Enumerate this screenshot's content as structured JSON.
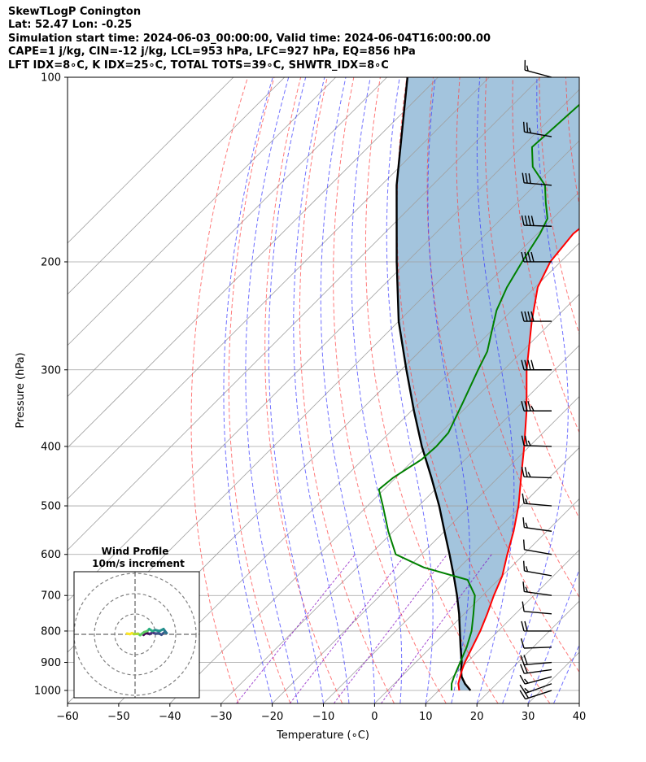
{
  "header": {
    "line1": "SkewTLogP Conington",
    "line2": "Lat: 52.47   Lon: -0.25",
    "line3": "Simulation start time: 2024-06-03_00:00:00, Valid time: 2024-06-04T16:00:00.00",
    "line4": "CAPE=1 j/kg, CIN=-12 j/kg, LCL=953 hPa, LFC=927 hPa, EQ=856 hPa",
    "line5": "LFT IDX=8∘C, K IDX=25∘C, TOTAL TOTS=39∘C, SHWTR_IDX=8∘C"
  },
  "chart_data": {
    "type": "line",
    "subtype": "skew-T log-P diagram",
    "xlabel": "Temperature (∘C)",
    "ylabel": "Pressure (hPa)",
    "xlim": [
      -60,
      40
    ],
    "ylim": [
      1050,
      100
    ],
    "y_scale": "log",
    "x_ticks": [
      -60,
      -50,
      -40,
      -30,
      -20,
      -10,
      0,
      10,
      20,
      30,
      40
    ],
    "y_ticks": [
      1000,
      900,
      800,
      700,
      600,
      500,
      400,
      300,
      200,
      100
    ],
    "grid": true,
    "colors": {
      "temperature": "#ff0000",
      "dewpoint": "#008000",
      "parcel": "#000000",
      "shading": "#a3c4dd",
      "dry_adiabats": "#ff4040",
      "moist_adiabats": "#3333ff",
      "mixing_ratio": "#7f00bf",
      "isotherms": "#a0a0a0"
    },
    "series": [
      {
        "role": "temperature",
        "points": [
          [
            1000,
            14.0
          ],
          [
            975,
            12.5
          ],
          [
            950,
            11.5
          ],
          [
            925,
            10.5
          ],
          [
            900,
            9.6
          ],
          [
            850,
            8.1
          ],
          [
            800,
            6.5
          ],
          [
            750,
            4.5
          ],
          [
            700,
            2.2
          ],
          [
            650,
            0.0
          ],
          [
            600,
            -3.2
          ],
          [
            550,
            -6.5
          ],
          [
            500,
            -10.5
          ],
          [
            450,
            -15.5
          ],
          [
            400,
            -21.0
          ],
          [
            350,
            -27.5
          ],
          [
            300,
            -35.5
          ],
          [
            250,
            -44.0
          ],
          [
            220,
            -49.5
          ],
          [
            200,
            -52.0
          ],
          [
            180,
            -53.0
          ],
          [
            165,
            -52.0
          ],
          [
            150,
            -49.5
          ],
          [
            135,
            -49.0
          ],
          [
            120,
            -49.5
          ],
          [
            110,
            -51.0
          ],
          [
            100,
            -53.0
          ]
        ]
      },
      {
        "role": "dewpoint",
        "points": [
          [
            1000,
            12.5
          ],
          [
            975,
            11.2
          ],
          [
            950,
            10.3
          ],
          [
            925,
            9.5
          ],
          [
            900,
            8.7
          ],
          [
            850,
            7.0
          ],
          [
            800,
            4.8
          ],
          [
            750,
            1.8
          ],
          [
            700,
            -1.5
          ],
          [
            660,
            -6.0
          ],
          [
            630,
            -17.0
          ],
          [
            600,
            -25.0
          ],
          [
            550,
            -31.0
          ],
          [
            500,
            -37.0
          ],
          [
            470,
            -41.0
          ],
          [
            450,
            -40.5
          ],
          [
            420,
            -38.5
          ],
          [
            400,
            -38.2
          ],
          [
            380,
            -38.5
          ],
          [
            340,
            -41.5
          ],
          [
            300,
            -45.0
          ],
          [
            280,
            -46.8
          ],
          [
            260,
            -49.8
          ],
          [
            240,
            -53.0
          ],
          [
            220,
            -55.5
          ],
          [
            200,
            -57.5
          ],
          [
            180,
            -59.5
          ],
          [
            170,
            -61.0
          ],
          [
            160,
            -64.5
          ],
          [
            150,
            -68.0
          ],
          [
            140,
            -74.0
          ],
          [
            130,
            -78.0
          ],
          [
            120,
            -77.5
          ],
          [
            110,
            -77.0
          ],
          [
            100,
            -77.0
          ]
        ]
      },
      {
        "role": "parcel",
        "points": [
          [
            1000,
            16.2
          ],
          [
            975,
            13.8
          ],
          [
            950,
            11.8
          ],
          [
            925,
            10.3
          ],
          [
            900,
            9.0
          ],
          [
            850,
            5.8
          ],
          [
            800,
            2.5
          ],
          [
            750,
            -1.0
          ],
          [
            700,
            -5.0
          ],
          [
            650,
            -9.5
          ],
          [
            600,
            -14.5
          ],
          [
            550,
            -20.0
          ],
          [
            500,
            -26.0
          ],
          [
            450,
            -33.0
          ],
          [
            400,
            -41.0
          ],
          [
            350,
            -49.5
          ],
          [
            300,
            -59.0
          ],
          [
            250,
            -70.0
          ],
          [
            200,
            -82.0
          ],
          [
            150,
            -97.0
          ],
          [
            100,
            -116.0
          ]
        ]
      }
    ],
    "wind_barbs": {
      "pressures": [
        1000,
        975,
        950,
        925,
        900,
        850,
        800,
        750,
        700,
        650,
        600,
        550,
        500,
        450,
        400,
        350,
        300,
        250,
        200,
        175,
        150,
        125,
        100
      ],
      "directions_deg": [
        252,
        250,
        255,
        262,
        265,
        268,
        270,
        275,
        278,
        280,
        280,
        278,
        275,
        272,
        272,
        270,
        270,
        270,
        270,
        272,
        275,
        280,
        285
      ],
      "speeds_kt": [
        20,
        15,
        15,
        20,
        20,
        10,
        20,
        10,
        15,
        15,
        10,
        15,
        15,
        25,
        25,
        35,
        40,
        40,
        40,
        40,
        30,
        25,
        15
      ]
    },
    "hodograph": {
      "title": "Wind Profile",
      "subtitle": "10m/s increment",
      "rings_ms": [
        10,
        20,
        30
      ],
      "trace_uv": [
        [
          4.2,
          -0.3
        ],
        [
          4.8,
          0.3
        ],
        [
          6.0,
          0.6
        ],
        [
          7.2,
          0.1
        ],
        [
          8.5,
          0.9
        ],
        [
          10.0,
          0.3
        ],
        [
          11.5,
          0.6
        ],
        [
          13.0,
          -0.2
        ],
        [
          14.5,
          1.1
        ],
        [
          15.5,
          0.6
        ],
        [
          14.0,
          2.6
        ],
        [
          12.0,
          1.6
        ],
        [
          10.0,
          2.1
        ],
        [
          8.5,
          1.6
        ],
        [
          7.0,
          2.6
        ],
        [
          6.0,
          1.6
        ],
        [
          4.5,
          1.1
        ],
        [
          2.5,
          -0.4
        ],
        [
          1.5,
          0.3
        ],
        [
          -0.5,
          0.1
        ],
        [
          -1.5,
          0.6
        ],
        [
          -2.5,
          0.1
        ],
        [
          -4.0,
          0.4
        ]
      ]
    }
  }
}
